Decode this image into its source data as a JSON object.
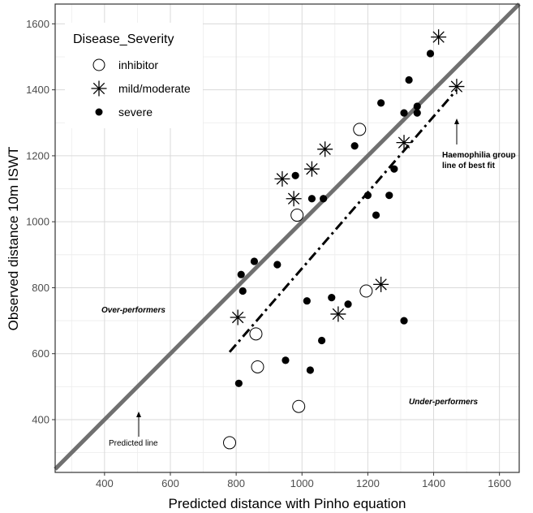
{
  "chart_data": {
    "type": "scatter",
    "title": "",
    "xlabel": "Predicted distance with Pinho equation",
    "ylabel": "Observed distance 10m ISWT",
    "xlim": [
      250,
      1660
    ],
    "ylim": [
      240,
      1660
    ],
    "xticks": [
      "400",
      "600",
      "800",
      "1000",
      "1200",
      "1400",
      "1600"
    ],
    "yticks": [
      "400",
      "600",
      "800",
      "1000",
      "1200",
      "1400",
      "1600"
    ],
    "grid": true,
    "legend": {
      "title": "Disease_Severity",
      "position": "top-left"
    },
    "series": [
      {
        "name": "inhibitor",
        "marker": "open-circle",
        "points": [
          [
            780,
            330
          ],
          [
            990,
            440
          ],
          [
            865,
            560
          ],
          [
            860,
            660
          ],
          [
            985,
            1020
          ],
          [
            1175,
            1280
          ],
          [
            1195,
            790
          ]
        ]
      },
      {
        "name": "mild/moderate",
        "marker": "asterisk",
        "points": [
          [
            940,
            1130
          ],
          [
            975,
            1070
          ],
          [
            1030,
            1160
          ],
          [
            1070,
            1220
          ],
          [
            805,
            710
          ],
          [
            1110,
            720
          ],
          [
            1240,
            810
          ],
          [
            1310,
            1240
          ],
          [
            1415,
            1560
          ],
          [
            1470,
            1410
          ]
        ]
      },
      {
        "name": "severe",
        "marker": "filled-circle",
        "points": [
          [
            808,
            510
          ],
          [
            815,
            840
          ],
          [
            820,
            790
          ],
          [
            855,
            880
          ],
          [
            925,
            870
          ],
          [
            950,
            580
          ],
          [
            980,
            1140
          ],
          [
            1015,
            760
          ],
          [
            1025,
            550
          ],
          [
            1030,
            1070
          ],
          [
            1060,
            640
          ],
          [
            1065,
            1070
          ],
          [
            1090,
            770
          ],
          [
            1140,
            750
          ],
          [
            1160,
            1230
          ],
          [
            1200,
            1080
          ],
          [
            1225,
            1020
          ],
          [
            1240,
            1360
          ],
          [
            1265,
            1080
          ],
          [
            1280,
            1160
          ],
          [
            1310,
            1330
          ],
          [
            1310,
            700
          ],
          [
            1325,
            1430
          ],
          [
            1350,
            1350
          ],
          [
            1350,
            1330
          ],
          [
            1390,
            1510
          ]
        ]
      }
    ],
    "lines": [
      {
        "name": "Predicted line",
        "style": "solid",
        "color": "#707070",
        "from": [
          250,
          250
        ],
        "to": [
          1660,
          1660
        ]
      },
      {
        "name": "Haemophilia group line of best fit",
        "style": "dash-dot",
        "color": "#000000",
        "from": [
          780,
          605
        ],
        "to": [
          1470,
          1400
        ]
      }
    ],
    "annotations": {
      "best_fit_line1": "Haemophilia group",
      "best_fit_line2": "line of best fit",
      "predicted": "Predicted line",
      "over": "Over-performers",
      "under": "Under-performers"
    }
  }
}
